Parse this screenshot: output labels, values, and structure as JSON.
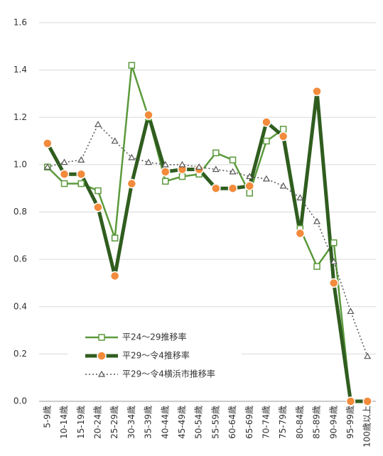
{
  "chart_data": {
    "type": "line",
    "categories": [
      "5-9歳",
      "10-14歳",
      "15-19歳",
      "20-24歳",
      "25-29歳",
      "30-34歳",
      "35-39歳",
      "40-44歳",
      "45-49歳",
      "50-54歳",
      "55-59歳",
      "60-64歳",
      "65-69歳",
      "70-74歳",
      "75-79歳",
      "80-84歳",
      "85-89歳",
      "90-94歳",
      "95-99歳",
      "100歳以上"
    ],
    "series": [
      {
        "name": "平24～29推移率",
        "color": "#5b9a3c",
        "marker": "square",
        "line_style": "solid",
        "values": [
          0.99,
          0.92,
          0.92,
          0.89,
          0.69,
          1.42,
          1.2,
          0.93,
          0.95,
          0.96,
          1.05,
          1.02,
          0.88,
          1.1,
          1.15,
          0.73,
          0.57,
          0.67,
          0,
          0
        ]
      },
      {
        "name": "平29～令4推移率",
        "color": "#2f5d1f",
        "marker_color": "#f28b3c",
        "marker": "circle",
        "line_style": "solid",
        "values": [
          1.09,
          0.96,
          0.96,
          0.82,
          0.53,
          0.92,
          1.21,
          0.97,
          0.98,
          0.98,
          0.9,
          0.9,
          0.91,
          1.18,
          1.12,
          0.71,
          1.31,
          0.5,
          0,
          0
        ]
      },
      {
        "name": "平29～令4横浜市推移率",
        "color": "#555555",
        "marker": "triangle",
        "line_style": "dotted",
        "values": [
          0.99,
          1.01,
          1.02,
          1.17,
          1.1,
          1.03,
          1.01,
          1.0,
          1.0,
          0.99,
          0.98,
          0.97,
          0.95,
          0.94,
          0.91,
          0.86,
          0.76,
          0.59,
          0.38,
          0.19
        ]
      }
    ],
    "ylim": [
      0,
      1.6
    ],
    "yticks": [
      {
        "value": 0,
        "label": "0.0"
      },
      0.2,
      0.4,
      0.6,
      0.8,
      {
        "value": 1,
        "label": "1.0"
      },
      1.2,
      1.4,
      1.6
    ],
    "grid": true,
    "legend": "lower left"
  }
}
